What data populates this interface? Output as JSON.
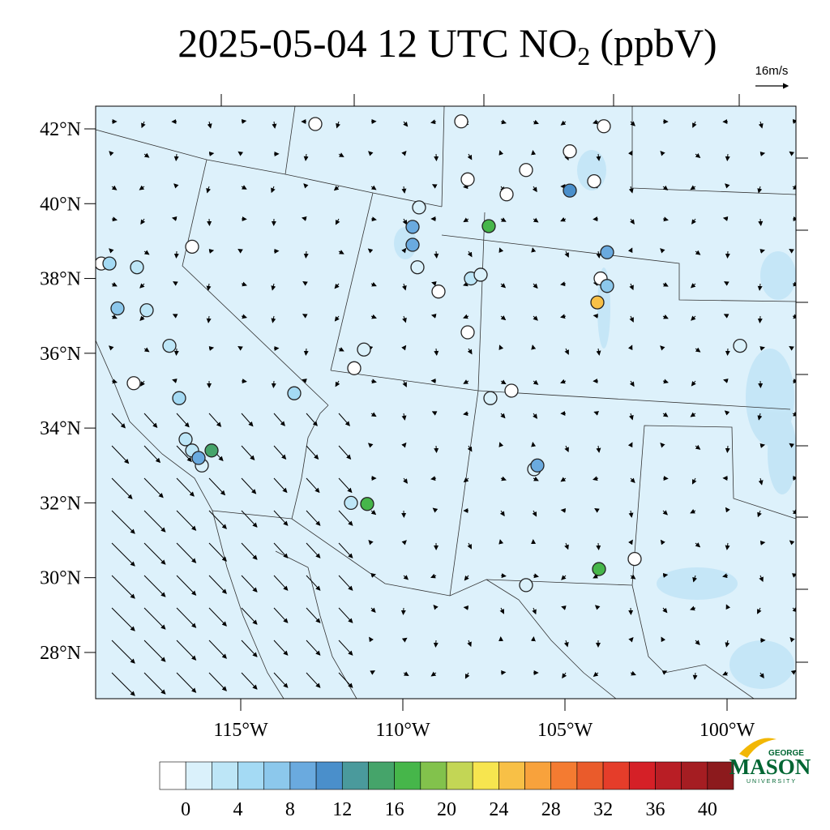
{
  "map": {
    "title": {
      "main": "2025-05-04 12 UTC NO",
      "subscript": "2",
      "unit": "(ppbV)"
    },
    "wind_scale": "16m/s",
    "lat_ticks": [
      {
        "value": 42,
        "label": "42°N"
      },
      {
        "value": 40,
        "label": "40°N"
      },
      {
        "value": 38,
        "label": "38°N"
      },
      {
        "value": 36,
        "label": "36°N"
      },
      {
        "value": 34,
        "label": "34°N"
      },
      {
        "value": 32,
        "label": "32°N"
      },
      {
        "value": 30,
        "label": "30°N"
      },
      {
        "value": 28,
        "label": "28°N"
      }
    ],
    "lon_ticks": [
      {
        "value": -115,
        "label": "115°W"
      },
      {
        "value": -110,
        "label": "110°W"
      },
      {
        "value": -105,
        "label": "105°W"
      },
      {
        "value": -100,
        "label": "100°W"
      }
    ],
    "colorbar": {
      "levels": [
        0,
        2,
        4,
        6,
        8,
        10,
        12,
        14,
        16,
        18,
        20,
        22,
        24,
        26,
        28,
        30,
        32,
        34,
        36,
        38,
        40
      ],
      "ticks": [
        0,
        4,
        8,
        12,
        16,
        20,
        24,
        28,
        32,
        36,
        40
      ],
      "colors": [
        "#ffffff",
        "#daf1fb",
        "#bde6f7",
        "#a4daf4",
        "#8cc8ec",
        "#6aaadf",
        "#4a8fcb",
        "#4a9a9c",
        "#45a46a",
        "#46b64a",
        "#82c24c",
        "#c3d655",
        "#f7e54f",
        "#f8c046",
        "#f8a23c",
        "#f47b31",
        "#ea5b2b",
        "#e53d2a",
        "#d52027",
        "#b91e25",
        "#a51d22",
        "#8c1a1d"
      ]
    },
    "stations": [
      {
        "lon": -112.7,
        "lat": 42.13,
        "value": 0
      },
      {
        "lon": -108.2,
        "lat": 42.2,
        "value": 0
      },
      {
        "lon": -103.8,
        "lat": 42.07,
        "value": 0
      },
      {
        "lon": -104.85,
        "lat": 41.4,
        "value": 0
      },
      {
        "lon": -104.1,
        "lat": 40.6,
        "value": 0
      },
      {
        "lon": -106.2,
        "lat": 40.9,
        "value": 0
      },
      {
        "lon": -108.0,
        "lat": 40.65,
        "value": 0
      },
      {
        "lon": -106.8,
        "lat": 40.25,
        "value": 0
      },
      {
        "lon": -109.5,
        "lat": 39.9,
        "value": 1
      },
      {
        "lon": -116.5,
        "lat": 38.85,
        "value": 0
      },
      {
        "lon": -119.3,
        "lat": 38.4,
        "value": 0
      },
      {
        "lon": -118.3,
        "lat": 35.2,
        "value": 0
      },
      {
        "lon": -108.9,
        "lat": 37.65,
        "value": 0
      },
      {
        "lon": -108.0,
        "lat": 36.56,
        "value": 0
      },
      {
        "lon": -111.5,
        "lat": 35.6,
        "value": 0
      },
      {
        "lon": -106.65,
        "lat": 35.0,
        "value": 0
      },
      {
        "lon": -102.85,
        "lat": 30.5,
        "value": 0
      },
      {
        "lon": -103.9,
        "lat": 38.0,
        "value": 0
      },
      {
        "lon": -109.55,
        "lat": 38.3,
        "value": 2
      },
      {
        "lon": -107.9,
        "lat": 38.0,
        "value": 3
      },
      {
        "lon": -107.6,
        "lat": 38.1,
        "value": 2
      },
      {
        "lon": -111.2,
        "lat": 36.1,
        "value": 1
      },
      {
        "lon": -107.3,
        "lat": 34.8,
        "value": 2
      },
      {
        "lon": -99.6,
        "lat": 36.2,
        "value": 2
      },
      {
        "lon": -106.2,
        "lat": 29.8,
        "value": 2
      },
      {
        "lon": -111.6,
        "lat": 32.0,
        "value": 3
      },
      {
        "lon": -118.2,
        "lat": 38.3,
        "value": 3
      },
      {
        "lon": -117.9,
        "lat": 37.15,
        "value": 4
      },
      {
        "lon": -117.2,
        "lat": 36.2,
        "value": 3
      },
      {
        "lon": -116.7,
        "lat": 33.7,
        "value": 3
      },
      {
        "lon": -116.5,
        "lat": 33.4,
        "value": 3
      },
      {
        "lon": -116.2,
        "lat": 33.0,
        "value": 2
      },
      {
        "lon": -105.95,
        "lat": 32.9,
        "value": 2
      },
      {
        "lon": -119.05,
        "lat": 38.4,
        "value": 5
      },
      {
        "lon": -118.8,
        "lat": 37.2,
        "value": 7
      },
      {
        "lon": -116.9,
        "lat": 34.8,
        "value": 6
      },
      {
        "lon": -113.35,
        "lat": 34.93,
        "value": 6
      },
      {
        "lon": -116.3,
        "lat": 33.2,
        "value": 9
      },
      {
        "lon": -105.85,
        "lat": 33.0,
        "value": 9
      },
      {
        "lon": -109.7,
        "lat": 38.9,
        "value": 9
      },
      {
        "lon": -109.7,
        "lat": 39.38,
        "value": 10
      },
      {
        "lon": -103.7,
        "lat": 38.7,
        "value": 10
      },
      {
        "lon": -103.7,
        "lat": 37.8,
        "value": 8
      },
      {
        "lon": -104.85,
        "lat": 40.35,
        "value": 12
      },
      {
        "lon": -115.9,
        "lat": 33.4,
        "value": 15
      },
      {
        "lon": -107.35,
        "lat": 39.4,
        "value": 17
      },
      {
        "lon": -103.95,
        "lat": 30.23,
        "value": 17
      },
      {
        "lon": -111.1,
        "lat": 31.97,
        "value": 18
      },
      {
        "lon": -104.0,
        "lat": 37.36,
        "value": 26
      }
    ],
    "logo": {
      "top": "GEORGE",
      "name": "MASON",
      "bottom": "UNIVERSITY"
    }
  }
}
